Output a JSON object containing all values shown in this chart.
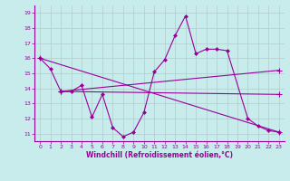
{
  "background_color": "#c8ecec",
  "line_color": "#990099",
  "grid_color": "#b0cccc",
  "xlabel": "Windchill (Refroidissement éolien,°C)",
  "xlabel_color": "#990099",
  "tick_color": "#990099",
  "xlim": [
    -0.5,
    23.5
  ],
  "ylim": [
    10.5,
    19.5
  ],
  "yticks": [
    11,
    12,
    13,
    14,
    15,
    16,
    17,
    18,
    19
  ],
  "xticks": [
    0,
    1,
    2,
    3,
    4,
    5,
    6,
    7,
    8,
    9,
    10,
    11,
    12,
    13,
    14,
    15,
    16,
    17,
    18,
    19,
    20,
    21,
    22,
    23
  ],
  "series_main": {
    "x": [
      0,
      1,
      2,
      3,
      4,
      5,
      6,
      7,
      8,
      9,
      10,
      11,
      12,
      13,
      14,
      15,
      16,
      17,
      18,
      20,
      21,
      22,
      23
    ],
    "y": [
      16.0,
      15.3,
      13.8,
      13.8,
      14.2,
      12.1,
      13.6,
      11.4,
      10.8,
      11.1,
      12.4,
      15.1,
      15.9,
      17.5,
      18.8,
      16.3,
      16.6,
      16.6,
      16.5,
      12.0,
      11.5,
      11.2,
      11.1
    ]
  },
  "series_line1": {
    "x": [
      0,
      23
    ],
    "y": [
      16.0,
      11.1
    ]
  },
  "series_line2": {
    "x": [
      2,
      23
    ],
    "y": [
      13.8,
      15.2
    ]
  },
  "series_line3": {
    "x": [
      2,
      23
    ],
    "y": [
      13.8,
      13.6
    ]
  },
  "series_line4": {
    "x": [
      2,
      10,
      23
    ],
    "y": [
      13.8,
      13.3,
      13.6
    ]
  }
}
